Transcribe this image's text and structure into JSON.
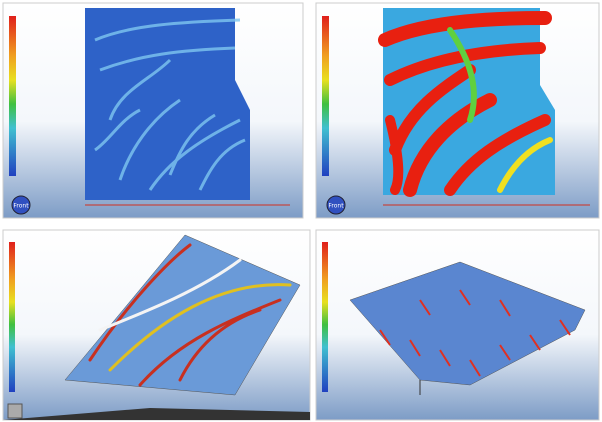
{
  "view_buttons": [
    "Front",
    "Front"
  ]
}
